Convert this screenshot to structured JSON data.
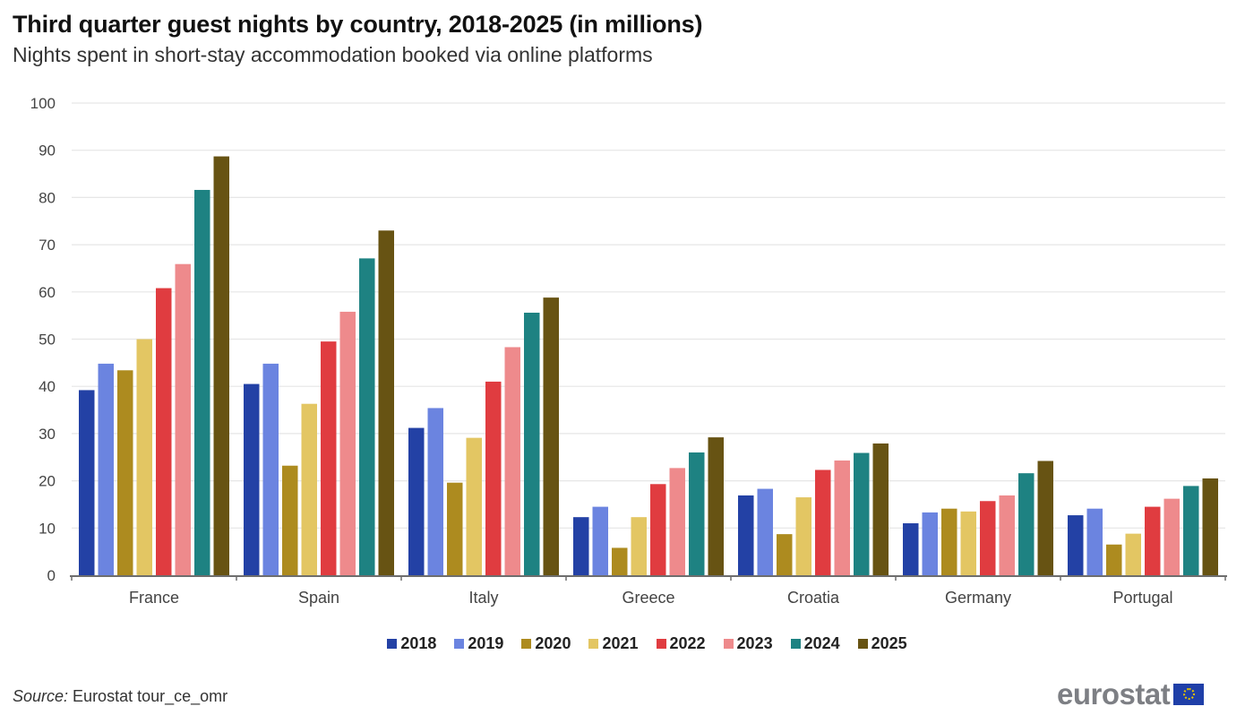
{
  "header": {
    "title": "Third quarter guest nights by country, 2018-2025 (in millions)",
    "subtitle": "Nights spent in short-stay accommodation booked via online platforms"
  },
  "footer": {
    "source_label": "Source:",
    "source_text": " Eurostat tour_ce_omr",
    "logo_text": "eurostat",
    "logo_icon": "eu-flag-icon"
  },
  "chart_data": {
    "type": "bar",
    "title": "Third quarter guest nights by country, 2018-2025 (in millions)",
    "subtitle": "Nights spent in short-stay accommodation booked via online platforms",
    "xlabel": "",
    "ylabel": "",
    "ylim": [
      0,
      100
    ],
    "yticks": [
      0,
      10,
      20,
      30,
      40,
      50,
      60,
      70,
      80,
      90,
      100
    ],
    "grid": true,
    "legend_position": "bottom-center",
    "categories": [
      "France",
      "Spain",
      "Italy",
      "Greece",
      "Croatia",
      "Germany",
      "Portugal"
    ],
    "series": [
      {
        "name": "2018",
        "color": "#2341a5",
        "values": [
          39.2,
          40.5,
          31.2,
          12.3,
          16.9,
          11.0,
          12.7
        ]
      },
      {
        "name": "2019",
        "color": "#6b84e0",
        "values": [
          44.8,
          44.8,
          35.4,
          14.5,
          18.3,
          13.3,
          14.1
        ]
      },
      {
        "name": "2020",
        "color": "#ad8b1f",
        "values": [
          43.4,
          23.2,
          19.6,
          5.8,
          8.7,
          14.1,
          6.5
        ]
      },
      {
        "name": "2021",
        "color": "#e3c663",
        "values": [
          50.0,
          36.3,
          29.1,
          12.3,
          16.5,
          13.5,
          8.8
        ]
      },
      {
        "name": "2022",
        "color": "#e03c40",
        "values": [
          60.8,
          49.5,
          41.0,
          19.3,
          22.3,
          15.7,
          14.5
        ]
      },
      {
        "name": "2023",
        "color": "#ee8a8c",
        "values": [
          65.9,
          55.8,
          48.3,
          22.7,
          24.3,
          16.9,
          16.2
        ]
      },
      {
        "name": "2024",
        "color": "#1e8282",
        "values": [
          81.6,
          67.1,
          55.6,
          26.0,
          25.9,
          21.6,
          18.9
        ]
      },
      {
        "name": "2025",
        "color": "#675313",
        "values": [
          88.7,
          73.0,
          58.8,
          29.2,
          27.9,
          24.2,
          20.5
        ]
      }
    ]
  }
}
